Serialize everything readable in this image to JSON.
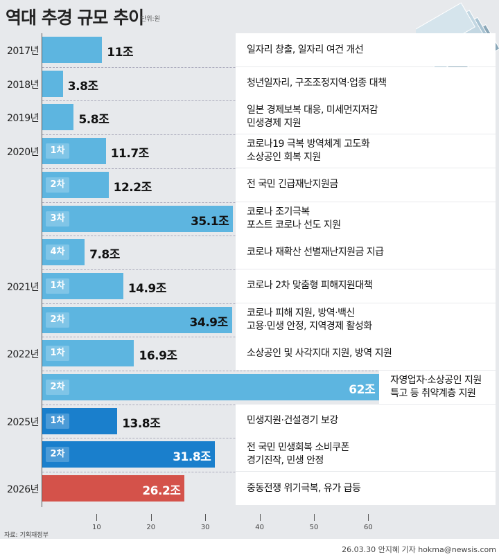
{
  "title": "역대 추경 규모 추이",
  "unit": "단위:원",
  "source": "자료: 기획재정부",
  "credit": "26.03.30 안지혜 기자 hokma@newsis.com",
  "colors": {
    "light": "#5db5e0",
    "dark": "#1a7fcc",
    "red": "#d4524a",
    "background": "#e7e9ec"
  },
  "chart_data": {
    "type": "bar",
    "orientation": "horizontal",
    "xlim": [
      0,
      65
    ],
    "ticks": [
      "10",
      "20",
      "30",
      "40",
      "50",
      "60"
    ],
    "rows": [
      {
        "year": "2017년",
        "badge": "",
        "label": "11조",
        "value": 11,
        "color": "light",
        "desc": [
          "일자리 창출, 일자리 여건 개선"
        ]
      },
      {
        "year": "2018년",
        "badge": "",
        "label": "3.8조",
        "value": 3.8,
        "color": "light",
        "desc": [
          "청년일자리, 구조조정지역·업종 대책"
        ]
      },
      {
        "year": "2019년",
        "badge": "",
        "label": "5.8조",
        "value": 5.8,
        "color": "light",
        "desc": [
          "일본 경제보복 대응, 미세먼지저감",
          "민생경제 지원"
        ]
      },
      {
        "year": "2020년",
        "badge": "1차",
        "label": "11.7조",
        "value": 11.7,
        "color": "light",
        "desc": [
          "코로나19 극복 방역체계 고도화",
          "소상공인 회복 지원"
        ]
      },
      {
        "year": "",
        "badge": "2차",
        "label": "12.2조",
        "value": 12.2,
        "color": "light",
        "desc": [
          "전 국민 긴급재난지원금"
        ]
      },
      {
        "year": "",
        "badge": "3차",
        "label": "35.1조",
        "value": 35.1,
        "color": "light",
        "inside": true,
        "desc": [
          "코로나 조기극복",
          "포스트 코로나 선도 지원"
        ]
      },
      {
        "year": "",
        "badge": "4차",
        "label": "7.8조",
        "value": 7.8,
        "color": "light",
        "desc": [
          "코로나 재확산 선별재난지원금 지급"
        ]
      },
      {
        "year": "2021년",
        "badge": "1차",
        "label": "14.9조",
        "value": 14.9,
        "color": "light",
        "desc": [
          "코로나 2차 맞춤형 피해지원대책"
        ]
      },
      {
        "year": "",
        "badge": "2차",
        "label": "34.9조",
        "value": 34.9,
        "color": "light",
        "inside": true,
        "desc": [
          "코로나 피해 지원, 방역·백신",
          "고용·민생 안정, 지역경제 활성화"
        ]
      },
      {
        "year": "2022년",
        "badge": "1차",
        "label": "16.9조",
        "value": 16.9,
        "color": "light",
        "desc": [
          "소상공인 및 사각지대 지원,  방역 지원"
        ]
      },
      {
        "year": "",
        "badge": "2차",
        "label": "62조",
        "value": 62,
        "color": "light",
        "inside": true,
        "white": true,
        "desc": [
          "자영업자·소상공인 지원",
          "특고 등 취약계층 지원"
        ]
      },
      {
        "year": "2025년",
        "badge": "1차",
        "label": "13.8조",
        "value": 13.8,
        "color": "dark",
        "desc": [
          "민생지원·건설경기 보강"
        ]
      },
      {
        "year": "",
        "badge": "2차",
        "label": "31.8조",
        "value": 31.8,
        "color": "dark",
        "inside": true,
        "white": true,
        "desc": [
          "전 국민 민생회복 소비쿠폰",
          "경기진작, 민생 안정"
        ]
      },
      {
        "year": "2026년",
        "badge": "",
        "label": "26.2조",
        "value": 26.2,
        "color": "red",
        "inside": true,
        "white": true,
        "desc": [
          "중동전쟁 위기극복, 유가 급등"
        ]
      }
    ]
  }
}
